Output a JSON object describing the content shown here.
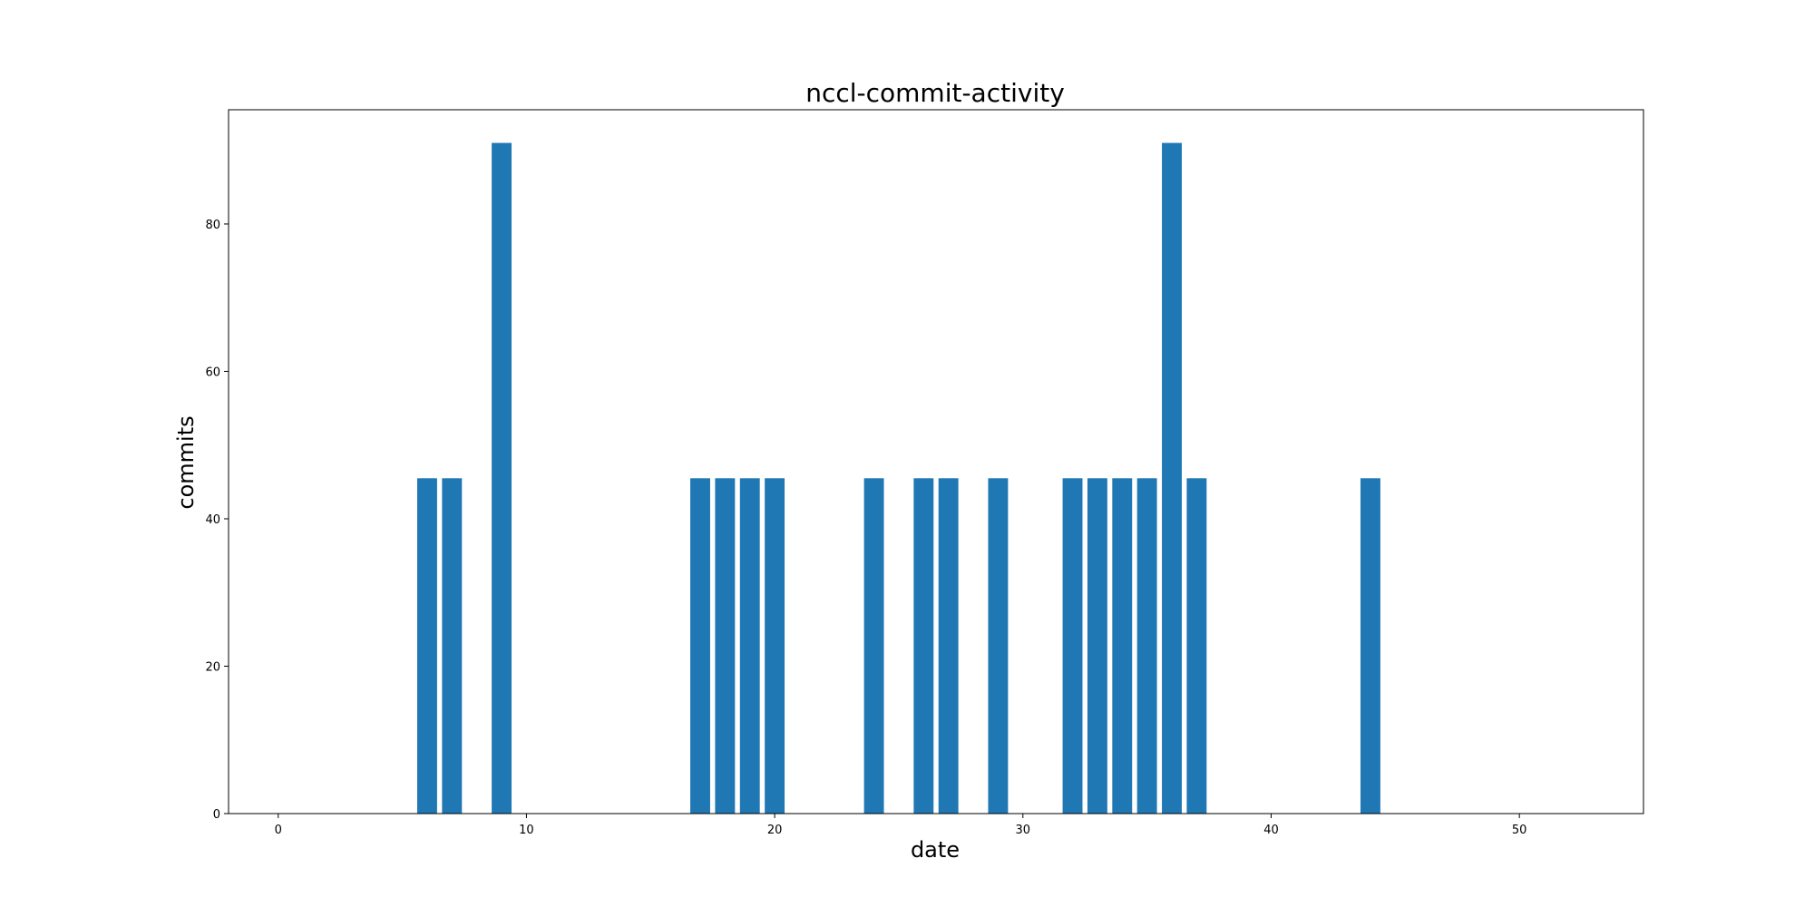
{
  "chart_data": {
    "type": "bar",
    "title": "nccl-commit-activity",
    "xlabel": "date",
    "ylabel": "commits",
    "x": [
      6,
      7,
      9,
      17,
      18,
      19,
      20,
      24,
      26,
      27,
      29,
      32,
      33,
      34,
      35,
      36,
      37,
      44
    ],
    "values": [
      45.5,
      45.5,
      91,
      45.5,
      45.5,
      45.5,
      45.5,
      45.5,
      45.5,
      45.5,
      45.5,
      45.5,
      45.5,
      45.5,
      45.5,
      91,
      45.5,
      45.5
    ],
    "xlim": [
      -2,
      55
    ],
    "ylim": [
      0,
      95.5
    ],
    "xticks": [
      0,
      10,
      20,
      30,
      40,
      50
    ],
    "yticks": [
      0,
      20,
      40,
      60,
      80
    ],
    "bar_width": 0.8,
    "bar_color": "#1f77b4",
    "grid": false
  }
}
